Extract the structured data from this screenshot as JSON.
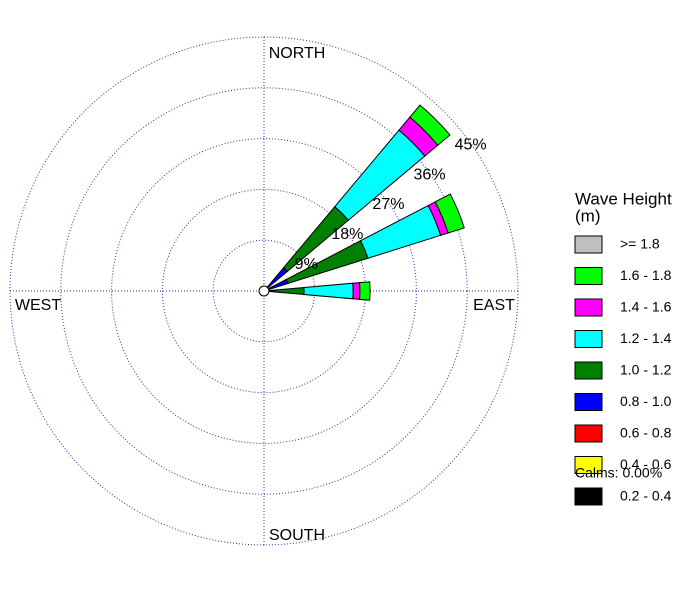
{
  "chart_data": {
    "type": "rose",
    "angles": [
      45,
      67.5,
      90
    ],
    "rlim": [
      0,
      45
    ],
    "rticks": [
      {
        "value": 9,
        "label": "9%"
      },
      {
        "value": 18,
        "label": "18%"
      },
      {
        "value": 27,
        "label": "27%"
      },
      {
        "value": 36,
        "label": "36%"
      },
      {
        "value": 45,
        "label": "45%"
      }
    ],
    "compass": [
      "NORTH",
      "EAST",
      "SOUTH",
      "WEST"
    ],
    "legend_title": [
      "Wave Height",
      "(m)"
    ],
    "calms": "Calms: 0.00%",
    "series": [
      {
        "name": "0.2 - 0.4",
        "color": "#000000",
        "values": [
          0.1,
          0.1,
          0.1
        ]
      },
      {
        "name": "0.4 - 0.6",
        "color": "#ffff00",
        "values": [
          0.2,
          0.2,
          0.2
        ]
      },
      {
        "name": "0.6 - 0.8",
        "color": "#ff0000",
        "values": [
          0.3,
          0.3,
          0.2
        ]
      },
      {
        "name": "0.8 - 1.0",
        "color": "#0000ff",
        "values": [
          4.8,
          3.8,
          1.3
        ]
      },
      {
        "name": "1.0 - 1.2",
        "color": "#008000",
        "values": [
          14.1,
          14.9,
          5.3
        ]
      },
      {
        "name": "1.2 - 1.4",
        "color": "#00ffff",
        "values": [
          17.7,
          13.5,
          8.7
        ]
      },
      {
        "name": "1.4 - 1.6",
        "color": "#ff00ff",
        "values": [
          3.0,
          1.4,
          1.2
        ]
      },
      {
        "name": "1.6 - 1.8",
        "color": "#00ff00",
        "values": [
          2.8,
          3.0,
          1.8
        ]
      },
      {
        "name": ">= 1.8",
        "color": "#c0c0c0",
        "values": [
          0,
          0,
          0
        ]
      }
    ]
  }
}
